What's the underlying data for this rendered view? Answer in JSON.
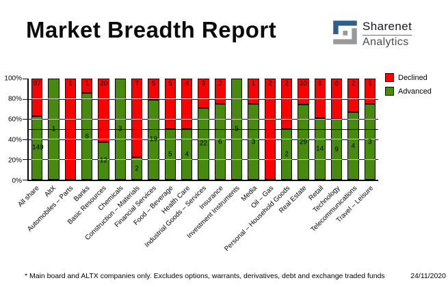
{
  "header": {
    "title": "Market Breadth Report",
    "logo": {
      "name": "Sharenet",
      "sub": "Analytics",
      "blue": "#2d5f8a",
      "gray": "#97999b"
    }
  },
  "chart_data": {
    "type": "bar",
    "variant": "100%-stacked-column",
    "title": "",
    "xlabel": "",
    "ylabel": "",
    "ylim": [
      0,
      100
    ],
    "y_ticks": [
      "0%",
      "20%",
      "40%",
      "60%",
      "80%",
      "100%"
    ],
    "gridlines": {
      "major_percent": [
        20,
        40,
        60,
        80
      ],
      "major_color": "#000080",
      "over_bar_color": "#c9c9c9",
      "midline_percent": 50,
      "midline_color": "#000000"
    },
    "legend_position": "right",
    "categories": [
      "All share",
      "AltX",
      "Automobiles – Parts",
      "Banks",
      "Basic Resources",
      "Chemicals",
      "Construction – Materials",
      "Financial Services",
      "Food – Beverage",
      "Health Care",
      "Industrial Goods – Services",
      "Insurance",
      "Investment Instruments",
      "Media",
      "Oil – Gas",
      "Personal – Household Goods",
      "Real Estate",
      "Retail",
      "Technology",
      "Telecommunications",
      "Travel – Leisure"
    ],
    "series": [
      {
        "name": "Declined",
        "color": "#ff0000",
        "values": [
          87,
          0,
          1,
          1,
          20,
          0,
          7,
          5,
          5,
          4,
          9,
          2,
          0,
          1,
          2,
          2,
          10,
          9,
          6,
          2,
          1
        ]
      },
      {
        "name": "Advanced",
        "color": "#478a0e",
        "values": [
          149,
          1,
          0,
          6,
          12,
          3,
          2,
          19,
          5,
          4,
          22,
          6,
          5,
          3,
          0,
          2,
          29,
          14,
          9,
          4,
          3
        ]
      }
    ]
  },
  "legend": {
    "items": [
      {
        "label": "Declined",
        "color": "#ff0000"
      },
      {
        "label": "Advanced",
        "color": "#478a0e"
      }
    ]
  },
  "footer": {
    "note": "* Main board and ALTX companies only. Excludes options, warrants, derivatives, debt and exchange traded funds",
    "date": "24/11/2020"
  }
}
